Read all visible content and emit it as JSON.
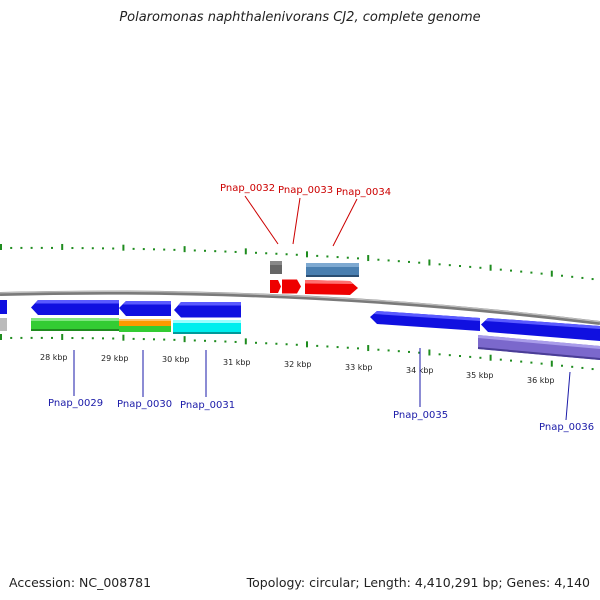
{
  "title": "Polaromonas naphthalenivorans CJ2, complete genome",
  "footer": {
    "accession": "Accession: NC_008781",
    "summary": "Topology: circular; Length: 4,410,291 bp; Genes: 4,140"
  },
  "colors": {
    "backbone": "#8a8a8a",
    "tick": "#1e8c1e",
    "forward_gene": "#cc0000",
    "reverse_gene": "#1a1aa8",
    "cds_blue": "#1010e0",
    "green": "#33cc33",
    "orange": "#ff9900",
    "cyan": "#00ffff",
    "steelblue": "#4682b4",
    "purple": "#7b68cc",
    "grey": "#666666"
  },
  "scale": {
    "kbp_labels": [
      "28 kbp",
      "29 kbp",
      "30 kbp",
      "31 kbp",
      "32 kbp",
      "33 kbp",
      "34 kbp",
      "35 kbp",
      "36 kbp"
    ]
  },
  "genes_forward": [
    {
      "label": "Pnap_0032"
    },
    {
      "label": "Pnap_0033"
    },
    {
      "label": "Pnap_0034"
    }
  ],
  "genes_reverse": [
    {
      "label": "Pnap_0029"
    },
    {
      "label": "Pnap_0030"
    },
    {
      "label": "Pnap_0031"
    },
    {
      "label": "Pnap_0035"
    },
    {
      "label": "Pnap_0036"
    }
  ]
}
